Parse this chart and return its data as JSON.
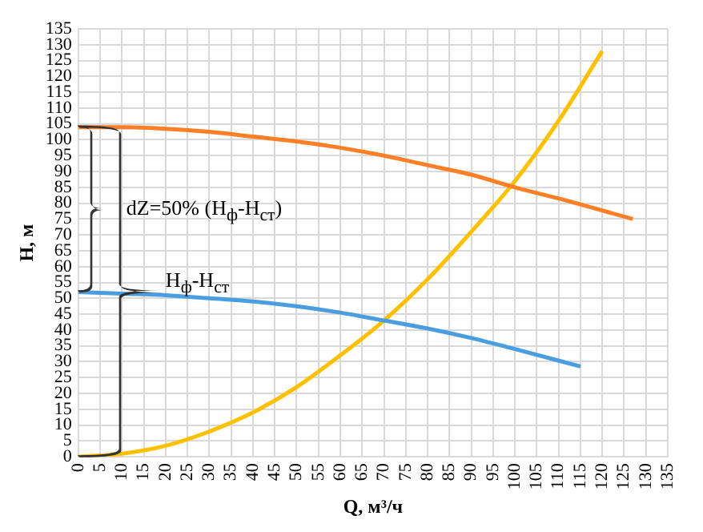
{
  "chart_data": {
    "type": "line",
    "xlabel": "Q, м³/ч",
    "ylabel": "H, м",
    "xlim": [
      0,
      135
    ],
    "xticks": [
      0,
      5,
      10,
      15,
      20,
      25,
      30,
      35,
      40,
      45,
      50,
      55,
      60,
      65,
      70,
      75,
      80,
      85,
      90,
      95,
      100,
      105,
      110,
      115,
      120,
      125,
      130,
      135
    ],
    "ylim": [
      0,
      135
    ],
    "yticks": [
      0,
      5,
      10,
      15,
      20,
      25,
      30,
      35,
      40,
      45,
      50,
      55,
      60,
      65,
      70,
      75,
      80,
      85,
      90,
      95,
      100,
      105,
      110,
      115,
      120,
      125,
      130,
      135
    ],
    "grid": true,
    "legend": false,
    "marker": "none",
    "line_style": "solid",
    "series": [
      {
        "color": "#ff7f27",
        "x": [
          0,
          10,
          20,
          30,
          40,
          50,
          60,
          70,
          80,
          90,
          100,
          110,
          127
        ],
        "values": [
          104,
          104,
          103.5,
          102.5,
          101,
          99.5,
          97.5,
          95,
          92,
          89,
          85,
          81.5,
          75
        ]
      },
      {
        "color": "#4a9ee0",
        "x": [
          0,
          10,
          20,
          30,
          40,
          50,
          60,
          70,
          80,
          90,
          100,
          115
        ],
        "values": [
          52,
          51.5,
          51,
          50,
          49,
          47.5,
          45.5,
          43,
          40.5,
          37.5,
          34,
          28.5
        ]
      },
      {
        "color": "#ffc000",
        "x": [
          0,
          10,
          20,
          30,
          40,
          50,
          60,
          70,
          80,
          90,
          100,
          110,
          120
        ],
        "values": [
          0,
          1,
          3.5,
          8,
          14,
          22,
          32,
          43,
          56,
          71,
          87,
          106,
          128
        ]
      }
    ],
    "annotations": [
      "dZ=50% (H$_{ф}$-H$_{ст}$)",
      {
        "text": "H$_{ф}$-H$_{ст}$",
        "x": 20,
        "y": 52
      }
    ]
  }
}
